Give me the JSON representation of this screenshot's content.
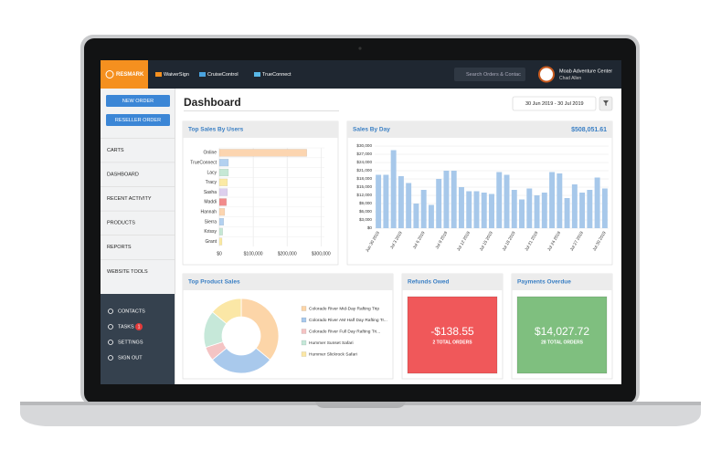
{
  "nav": {
    "logo": "RESMARK",
    "items": [
      "WaiverSign",
      "CruiseControl",
      "TrueConnect"
    ],
    "search_placeholder": "Search Orders & Contac",
    "account": "Moab Adventure Center",
    "user": "Chad Allen"
  },
  "sidebar": {
    "buttons": [
      "NEW ORDER",
      "RESELLER ORDER"
    ],
    "menu": [
      "CARTS",
      "DASHBOARD",
      "RECENT ACTIVITY",
      "PRODUCTS",
      "REPORTS",
      "WEBSITE TOOLS"
    ],
    "footer": [
      {
        "label": "CONTACTS"
      },
      {
        "label": "TASKS",
        "badge": 1
      },
      {
        "label": "SETTINGS"
      },
      {
        "label": "SIGN OUT"
      }
    ]
  },
  "header": {
    "title": "Dashboard",
    "date_range": "30 Jun 2019 - 30 Jul 2019"
  },
  "chart_data": [
    {
      "type": "hbar",
      "title": "Top Sales By Users",
      "categories": [
        "Online",
        "TrueConnect",
        "Lacy",
        "Tracy",
        "Sasha",
        "Maddi",
        "Hannah",
        "Sierra",
        "Krissy",
        "Grant"
      ],
      "values": [
        258000,
        27000,
        27000,
        24000,
        24000,
        21000,
        16000,
        13000,
        10000,
        8000
      ],
      "colors": [
        "#fcd5b0",
        "#b3d1f0",
        "#c6e8d5",
        "#fbeaa4",
        "#ddd0ee",
        "#f28b8b",
        "#fcd5b0",
        "#b3d1f0",
        "#c6e8d5",
        "#fbeaa4"
      ],
      "xlim": [
        0,
        310000
      ],
      "xticks": [
        {
          "value": 0,
          "label": "$0"
        },
        {
          "value": 100000,
          "label": "$100,000"
        },
        {
          "value": 200000,
          "label": "$200,000"
        },
        {
          "value": 300000,
          "label": "$300,000"
        }
      ],
      "grid": true
    },
    {
      "type": "bar",
      "title": "Sales By Day",
      "total": "$508,051.61",
      "categories": [
        "Jun 30 2019",
        null,
        null,
        "Jul 3 2019",
        null,
        null,
        "Jul 6 2019",
        null,
        null,
        "Jul 9 2019",
        null,
        null,
        "Jul 12 2019",
        null,
        null,
        "Jul 15 2019",
        null,
        null,
        "Jul 18 2019",
        null,
        null,
        "Jul 21 2019",
        null,
        null,
        "Jul 24 2019",
        null,
        null,
        "Jul 27 2019",
        null,
        null,
        "Jul 30 2019"
      ],
      "values": [
        19500,
        19500,
        28500,
        19000,
        16500,
        9000,
        14000,
        8500,
        18000,
        21000,
        21000,
        15000,
        13500,
        13500,
        13000,
        12500,
        20500,
        19500,
        14000,
        10500,
        14500,
        12000,
        13000,
        20500,
        20000,
        11000,
        16000,
        13000,
        14000,
        18500,
        14500
      ],
      "color": "#a7c8ea",
      "ylim": [
        0,
        30000
      ],
      "yticks": [
        {
          "value": 0,
          "label": "$0"
        },
        {
          "value": 3000,
          "label": "$3,000"
        },
        {
          "value": 6000,
          "label": "$6,000"
        },
        {
          "value": 9000,
          "label": "$9,000"
        },
        {
          "value": 12000,
          "label": "$12,000"
        },
        {
          "value": 15000,
          "label": "$15,000"
        },
        {
          "value": 18000,
          "label": "$18,000"
        },
        {
          "value": 21000,
          "label": "$21,000"
        },
        {
          "value": 24000,
          "label": "$24,000"
        },
        {
          "value": 27000,
          "label": "$27,000"
        },
        {
          "value": 30000,
          "label": "$30,000"
        }
      ],
      "grid": true
    },
    {
      "type": "donut",
      "title": "Top Product Sales",
      "categories": [
        "Colorado River Mid-Day Rafting Trip",
        "Colorado River AM Half Day Rafting Tr...",
        "Colorado River Full Day Rafting Tri...",
        "Hummer Sunset Safari",
        "Hummer Slickrock Safari"
      ],
      "values": [
        36,
        28,
        6,
        16,
        14
      ],
      "colors": [
        "#fcd5a8",
        "#a9c9ec",
        "#f4c4c4",
        "#c6e8d9",
        "#fbe7a6"
      ]
    }
  ],
  "cards": [
    {
      "title": "Refunds Owed",
      "amount": "-$138.55",
      "orders": "2 TOTAL ORDERS",
      "color": "#f0585a"
    },
    {
      "title": "Payments Overdue",
      "amount": "$14,027.72",
      "orders": "28 TOTAL ORDERS",
      "color": "#7fbf7f"
    }
  ]
}
